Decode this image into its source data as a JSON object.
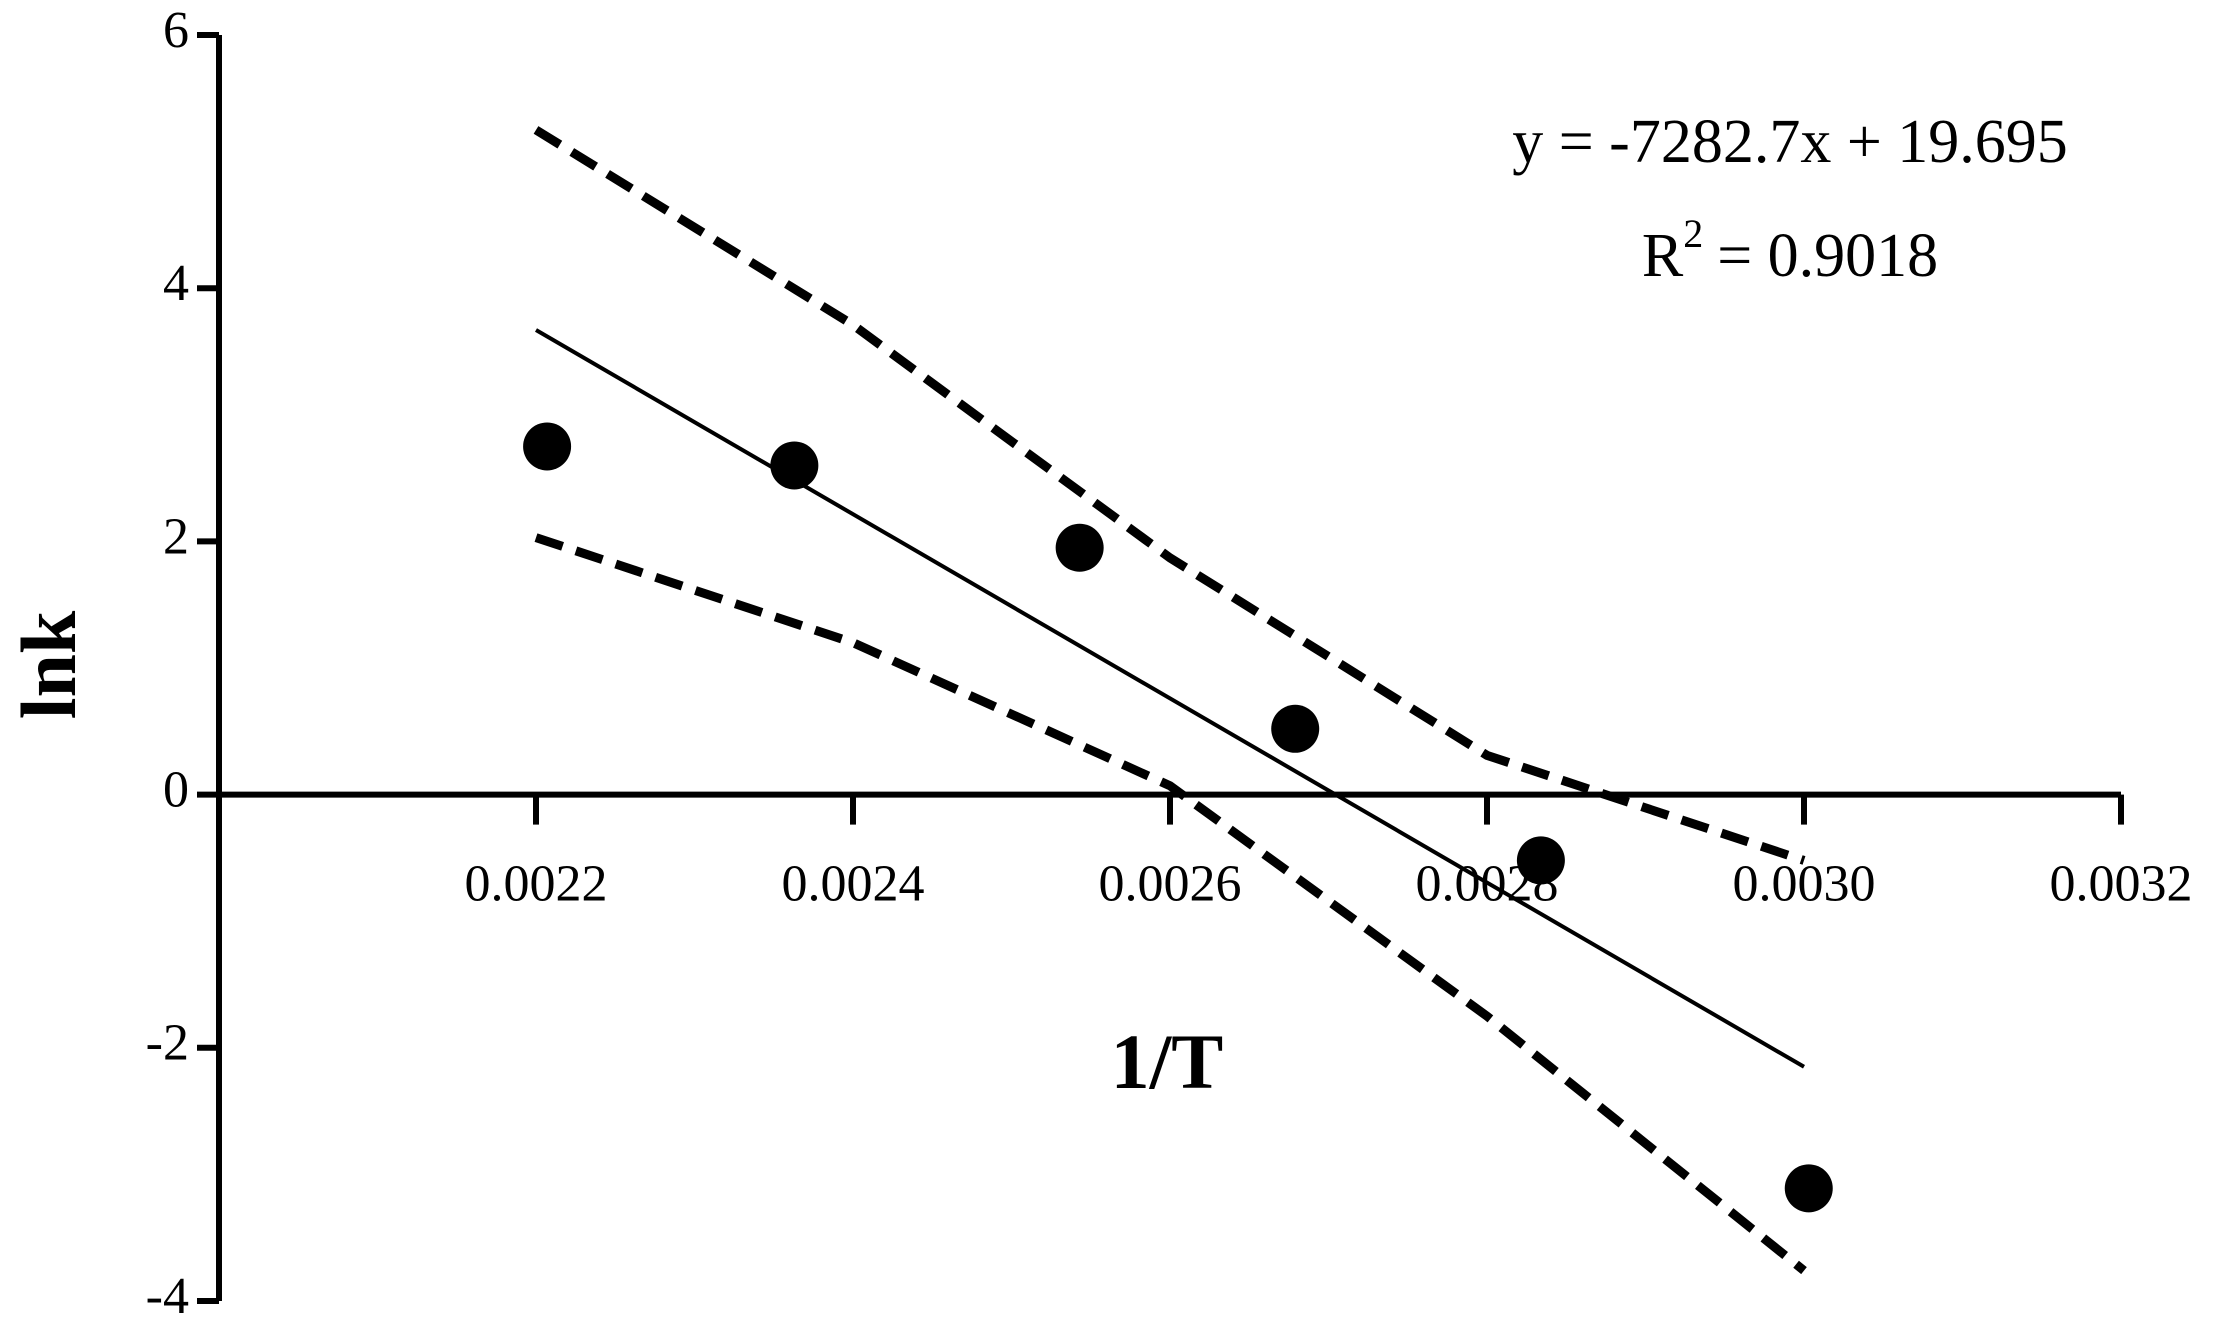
{
  "chart_data": {
    "type": "scatter",
    "xlabel": "1/T",
    "ylabel": "lnk",
    "equation": "y = -7282.7x + 19.695",
    "r_squared": {
      "base": "R",
      "sup": "2",
      "rest": "= 0.9018"
    },
    "xlim": [
      0.002,
      0.0032
    ],
    "ylim": [
      -4,
      6
    ],
    "xticks": [
      0.0022,
      0.0024,
      0.0026,
      0.0028,
      {
        "value": 0.003,
        "label": "0.0030"
      },
      0.0032
    ],
    "yticks": [
      -4,
      -2,
      0,
      2,
      4,
      6
    ],
    "grid": false,
    "series": [
      {
        "style": "markers",
        "color": "#000000",
        "x": [
          0.002207,
          0.002363,
          0.002543,
          0.002679,
          0.002834,
          0.003003
        ],
        "values": [
          2.75,
          2.6,
          1.95,
          0.52,
          -0.52,
          -3.11
        ]
      },
      {
        "style": "solid",
        "color": "#000000",
        "x": [
          0.0022,
          0.003
        ],
        "values": [
          3.67,
          -2.15
        ]
      },
      {
        "style": "dashed",
        "color": "#000000",
        "x": [
          0.0022,
          0.0024,
          0.0026,
          0.0028,
          0.003
        ],
        "values": [
          5.25,
          3.71,
          1.87,
          0.31,
          -0.52
        ]
      },
      {
        "style": "dashed",
        "color": "#000000",
        "x": [
          0.0022,
          0.0024,
          0.0026,
          0.0028,
          0.003
        ],
        "values": [
          2.03,
          1.2,
          0.07,
          -1.75,
          -3.76
        ]
      }
    ]
  }
}
